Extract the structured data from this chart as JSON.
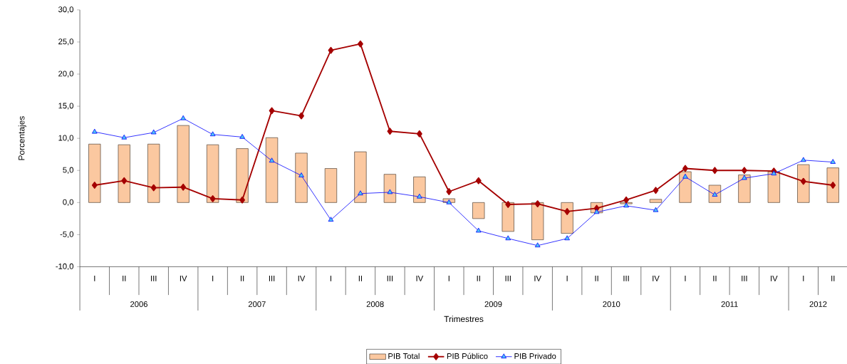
{
  "chart_data": {
    "type": "bar",
    "xlabel": "Trimestres",
    "ylabel": "Porcentajes",
    "categories": [
      "I",
      "II",
      "III",
      "IV",
      "I",
      "II",
      "III",
      "IV",
      "I",
      "II",
      "III",
      "IV",
      "I",
      "II",
      "III",
      "IV",
      "I",
      "II",
      "III",
      "IV",
      "I",
      "II",
      "III",
      "IV",
      "I",
      "II"
    ],
    "annotations": [
      "2006",
      "2007",
      "2008",
      "2009",
      "2010",
      "2011",
      "2012"
    ],
    "series": [
      {
        "name": "PIB Total",
        "color": "#fbc8a0",
        "values": [
          9.1,
          9.0,
          9.1,
          12.0,
          9.0,
          8.4,
          10.1,
          7.7,
          5.3,
          7.9,
          4.4,
          4.0,
          0.6,
          -2.5,
          -4.5,
          -5.8,
          -4.8,
          -1.6,
          -0.2,
          0.5,
          4.8,
          2.7,
          4.3,
          4.8,
          5.9,
          5.4
        ]
      },
      {
        "name": "PIB Público",
        "type": "line",
        "marker": "diamond",
        "color": "#a50000",
        "values": [
          2.7,
          3.4,
          2.3,
          2.4,
          0.6,
          0.4,
          14.3,
          13.5,
          23.7,
          24.7,
          11.1,
          10.7,
          1.7,
          3.4,
          -0.3,
          -0.2,
          -1.4,
          -0.9,
          0.4,
          1.9,
          5.3,
          5.0,
          5.0,
          4.9,
          3.3,
          2.7
        ]
      },
      {
        "name": "PIB Privado",
        "type": "line",
        "marker": "triangle",
        "color": "#0000ff",
        "values": [
          11.0,
          10.1,
          10.9,
          13.1,
          10.6,
          10.2,
          6.5,
          4.2,
          -2.7,
          1.4,
          1.6,
          0.9,
          0.0,
          -4.4,
          -5.6,
          -6.7,
          -5.6,
          -1.5,
          -0.5,
          -1.2,
          4.0,
          1.2,
          3.8,
          4.5,
          6.6,
          6.3
        ]
      }
    ],
    "ylim": [
      -10,
      30
    ],
    "yticks": [
      {
        "value": -10,
        "label": "-10,0"
      },
      {
        "value": -5,
        "label": "-5,0"
      },
      {
        "value": 0,
        "label": "0,0"
      },
      {
        "value": 5,
        "label": "5,0"
      },
      {
        "value": 10,
        "label": "10,0"
      },
      {
        "value": 15,
        "label": "15,0"
      },
      {
        "value": 20,
        "label": "20,0"
      },
      {
        "value": 25,
        "label": "25,0"
      },
      {
        "value": 30,
        "label": "30,0"
      }
    ],
    "legend": "bottom"
  }
}
